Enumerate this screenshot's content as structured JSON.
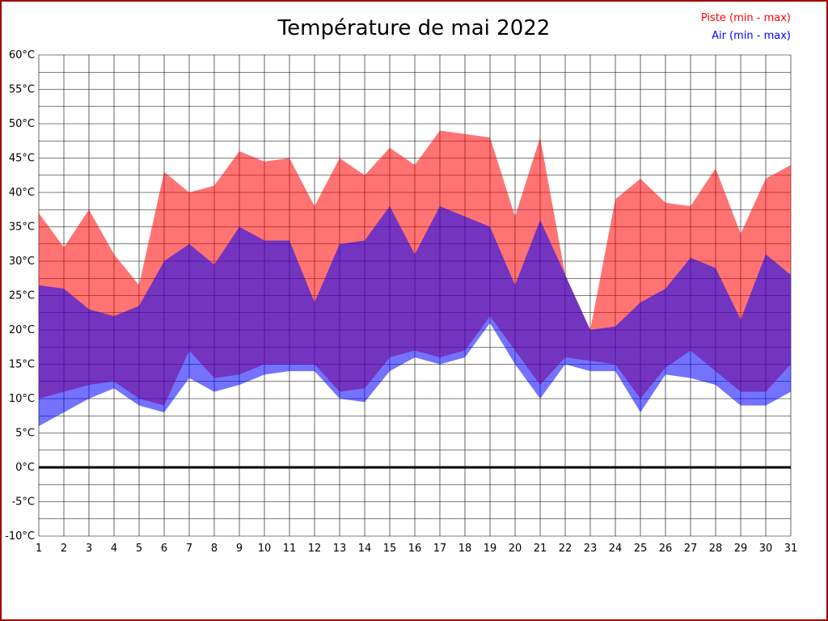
{
  "page": {
    "border_color": "#a00000",
    "background": "#ffffff"
  },
  "chart_data": {
    "type": "area",
    "title": "Température de mai 2022",
    "legend": [
      {
        "label": "Piste (min - max)",
        "color": "#ff0000"
      },
      {
        "label": "Air (min - max)",
        "color": "#0000ff"
      }
    ],
    "x": [
      1,
      2,
      3,
      4,
      5,
      6,
      7,
      8,
      9,
      10,
      11,
      12,
      13,
      14,
      15,
      16,
      17,
      18,
      19,
      20,
      21,
      22,
      23,
      24,
      25,
      26,
      27,
      28,
      29,
      30,
      31
    ],
    "series": [
      {
        "name": "piste_max",
        "values": [
          37,
          32,
          37.5,
          31,
          26.5,
          43,
          40,
          41,
          46,
          44.5,
          45,
          38,
          45,
          42.5,
          46.5,
          44,
          49,
          48.5,
          48,
          36.5,
          48,
          28,
          20,
          39,
          42,
          38.5,
          38,
          43.5,
          34,
          42,
          44
        ]
      },
      {
        "name": "piste_min",
        "values": [
          10,
          11,
          12,
          12.5,
          10,
          9,
          17,
          13,
          13.5,
          15,
          15,
          15,
          11,
          11.5,
          16,
          17,
          16,
          17,
          22,
          17,
          12,
          16,
          15.5,
          15,
          10,
          14.5,
          17,
          14,
          11,
          11,
          15
        ]
      },
      {
        "name": "air_max",
        "values": [
          26.5,
          26,
          23,
          22,
          23.5,
          30,
          32.5,
          29.5,
          35,
          33,
          33,
          24,
          32.5,
          33,
          38,
          31,
          38,
          36.5,
          35,
          26.5,
          36,
          28,
          20,
          20.5,
          24,
          26,
          30.5,
          29,
          21.5,
          31,
          28
        ]
      },
      {
        "name": "air_min",
        "values": [
          6,
          8,
          10,
          11.5,
          9,
          8,
          13,
          11,
          12,
          13.5,
          14,
          14,
          10,
          9.5,
          14,
          16,
          15,
          16,
          21,
          15,
          10,
          15,
          14,
          14,
          8,
          13.5,
          13,
          12,
          9,
          9,
          11
        ]
      }
    ],
    "ylim": [
      -10,
      60
    ],
    "y_tick_step": 5,
    "y_minor_step": 2.5,
    "y_tick_suffix": "°C",
    "zero_line": true,
    "grid": true,
    "legend_position": "top-right",
    "colors": {
      "piste_fill": "#ff0000",
      "air_fill": "#0000ff",
      "fill_opacity": 0.55,
      "grid": "#000000"
    }
  }
}
